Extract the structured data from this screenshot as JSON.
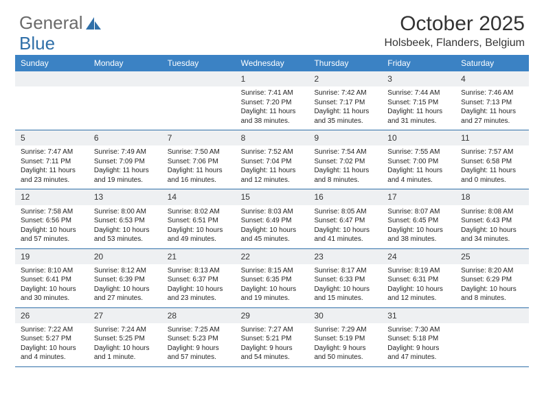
{
  "brand": {
    "name": "General",
    "accent": "Blue"
  },
  "colors": {
    "header_blue": "#3b82c4",
    "rule_blue": "#2f6fa8",
    "daynum_bg": "#eef0f2",
    "text": "#333333",
    "logo_gray": "#6a6a6a",
    "logo_accent": "#2f6fa8"
  },
  "typography": {
    "month_title_pt": 30,
    "location_pt": 16,
    "weekday_pt": 12,
    "daynum_pt": 12,
    "body_pt": 10
  },
  "title": "October 2025",
  "location": "Holsbeek, Flanders, Belgium",
  "weekdays": [
    "Sunday",
    "Monday",
    "Tuesday",
    "Wednesday",
    "Thursday",
    "Friday",
    "Saturday"
  ],
  "layout": {
    "first_weekday_index": 3,
    "days_in_month": 31,
    "cols": 7
  },
  "days": [
    {
      "n": 1,
      "sunrise": "7:41 AM",
      "sunset": "7:20 PM",
      "daylight": "11 hours and 38 minutes."
    },
    {
      "n": 2,
      "sunrise": "7:42 AM",
      "sunset": "7:17 PM",
      "daylight": "11 hours and 35 minutes."
    },
    {
      "n": 3,
      "sunrise": "7:44 AM",
      "sunset": "7:15 PM",
      "daylight": "11 hours and 31 minutes."
    },
    {
      "n": 4,
      "sunrise": "7:46 AM",
      "sunset": "7:13 PM",
      "daylight": "11 hours and 27 minutes."
    },
    {
      "n": 5,
      "sunrise": "7:47 AM",
      "sunset": "7:11 PM",
      "daylight": "11 hours and 23 minutes."
    },
    {
      "n": 6,
      "sunrise": "7:49 AM",
      "sunset": "7:09 PM",
      "daylight": "11 hours and 19 minutes."
    },
    {
      "n": 7,
      "sunrise": "7:50 AM",
      "sunset": "7:06 PM",
      "daylight": "11 hours and 16 minutes."
    },
    {
      "n": 8,
      "sunrise": "7:52 AM",
      "sunset": "7:04 PM",
      "daylight": "11 hours and 12 minutes."
    },
    {
      "n": 9,
      "sunrise": "7:54 AM",
      "sunset": "7:02 PM",
      "daylight": "11 hours and 8 minutes."
    },
    {
      "n": 10,
      "sunrise": "7:55 AM",
      "sunset": "7:00 PM",
      "daylight": "11 hours and 4 minutes."
    },
    {
      "n": 11,
      "sunrise": "7:57 AM",
      "sunset": "6:58 PM",
      "daylight": "11 hours and 0 minutes."
    },
    {
      "n": 12,
      "sunrise": "7:58 AM",
      "sunset": "6:56 PM",
      "daylight": "10 hours and 57 minutes."
    },
    {
      "n": 13,
      "sunrise": "8:00 AM",
      "sunset": "6:53 PM",
      "daylight": "10 hours and 53 minutes."
    },
    {
      "n": 14,
      "sunrise": "8:02 AM",
      "sunset": "6:51 PM",
      "daylight": "10 hours and 49 minutes."
    },
    {
      "n": 15,
      "sunrise": "8:03 AM",
      "sunset": "6:49 PM",
      "daylight": "10 hours and 45 minutes."
    },
    {
      "n": 16,
      "sunrise": "8:05 AM",
      "sunset": "6:47 PM",
      "daylight": "10 hours and 41 minutes."
    },
    {
      "n": 17,
      "sunrise": "8:07 AM",
      "sunset": "6:45 PM",
      "daylight": "10 hours and 38 minutes."
    },
    {
      "n": 18,
      "sunrise": "8:08 AM",
      "sunset": "6:43 PM",
      "daylight": "10 hours and 34 minutes."
    },
    {
      "n": 19,
      "sunrise": "8:10 AM",
      "sunset": "6:41 PM",
      "daylight": "10 hours and 30 minutes."
    },
    {
      "n": 20,
      "sunrise": "8:12 AM",
      "sunset": "6:39 PM",
      "daylight": "10 hours and 27 minutes."
    },
    {
      "n": 21,
      "sunrise": "8:13 AM",
      "sunset": "6:37 PM",
      "daylight": "10 hours and 23 minutes."
    },
    {
      "n": 22,
      "sunrise": "8:15 AM",
      "sunset": "6:35 PM",
      "daylight": "10 hours and 19 minutes."
    },
    {
      "n": 23,
      "sunrise": "8:17 AM",
      "sunset": "6:33 PM",
      "daylight": "10 hours and 15 minutes."
    },
    {
      "n": 24,
      "sunrise": "8:19 AM",
      "sunset": "6:31 PM",
      "daylight": "10 hours and 12 minutes."
    },
    {
      "n": 25,
      "sunrise": "8:20 AM",
      "sunset": "6:29 PM",
      "daylight": "10 hours and 8 minutes."
    },
    {
      "n": 26,
      "sunrise": "7:22 AM",
      "sunset": "5:27 PM",
      "daylight": "10 hours and 4 minutes."
    },
    {
      "n": 27,
      "sunrise": "7:24 AM",
      "sunset": "5:25 PM",
      "daylight": "10 hours and 1 minute."
    },
    {
      "n": 28,
      "sunrise": "7:25 AM",
      "sunset": "5:23 PM",
      "daylight": "9 hours and 57 minutes."
    },
    {
      "n": 29,
      "sunrise": "7:27 AM",
      "sunset": "5:21 PM",
      "daylight": "9 hours and 54 minutes."
    },
    {
      "n": 30,
      "sunrise": "7:29 AM",
      "sunset": "5:19 PM",
      "daylight": "9 hours and 50 minutes."
    },
    {
      "n": 31,
      "sunrise": "7:30 AM",
      "sunset": "5:18 PM",
      "daylight": "9 hours and 47 minutes."
    }
  ]
}
